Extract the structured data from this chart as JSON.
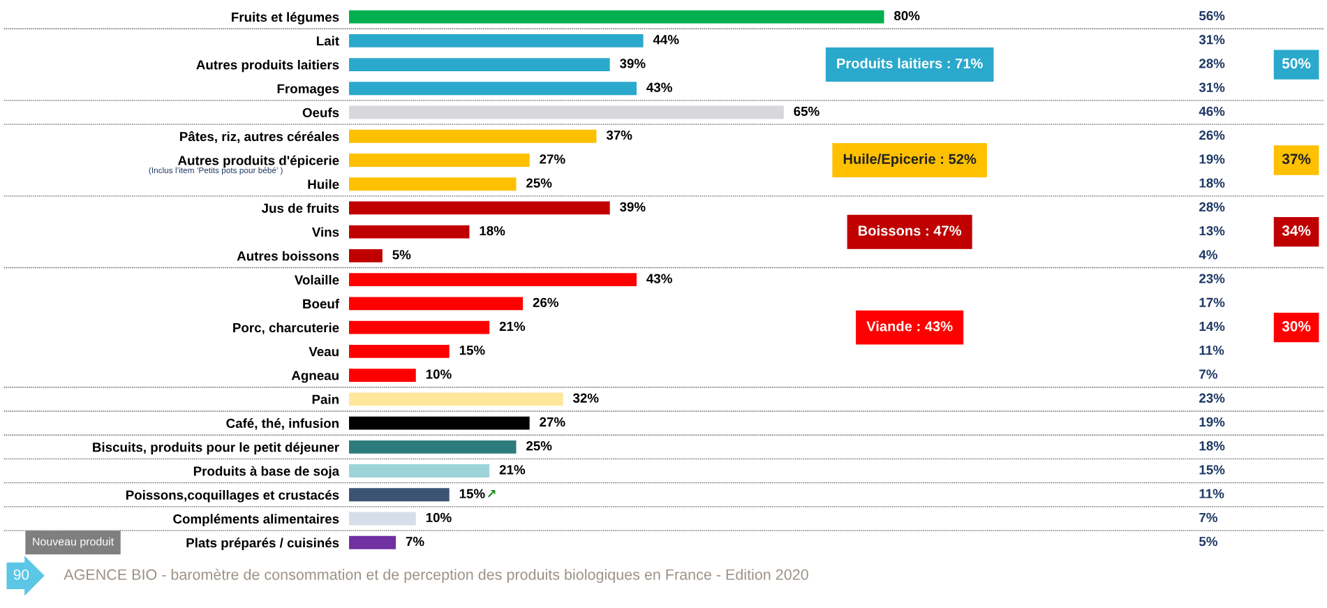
{
  "chart_data": [
    {
      "type": "bar",
      "orientation": "horizontal",
      "data_labels": true,
      "categories": [
        "Fruits et légumes",
        "Lait",
        "Autres produits laitiers",
        "Fromages",
        "Oeufs",
        "Pâtes, riz, autres céréales",
        "Autres produits d'épicerie",
        "Huile",
        "Jus de fruits",
        "Vins",
        "Autres boissons",
        "Volaille",
        "Boeuf",
        "Porc, charcuterie",
        "Veau",
        "Agneau",
        "Pain",
        "Café, thé, infusion",
        "Biscuits, produits pour le petit déjeuner",
        "Produits à base de soja",
        "Poissons,coquillages et crustacés",
        "Compléments alimentaires",
        "Plats préparés / cuisinés"
      ],
      "values": [
        80,
        44,
        39,
        43,
        65,
        37,
        27,
        25,
        39,
        18,
        5,
        43,
        26,
        21,
        15,
        10,
        32,
        27,
        25,
        21,
        15,
        10,
        7
      ],
      "value_labels": [
        "80%",
        "44%",
        "39%",
        "43%",
        "65%",
        "37%",
        "27%",
        "25%",
        "39%",
        "18%",
        "5%",
        "43%",
        "26%",
        "21%",
        "15%",
        "10%",
        "32%",
        "27%",
        "25%",
        "21%",
        "15%",
        "10%",
        "7%"
      ],
      "colors": [
        "#00b050",
        "#2aa9cc",
        "#2aa9cc",
        "#2aa9cc",
        "#d9d7dc",
        "#ffc000",
        "#ffc000",
        "#ffc000",
        "#c00000",
        "#c00000",
        "#c00000",
        "#ff0000",
        "#ff0000",
        "#ff0000",
        "#ff0000",
        "#ff0000",
        "#ffe699",
        "#000000",
        "#2e7b7b",
        "#9dd4d9",
        "#3c5373",
        "#d6dfe9",
        "#7030a0"
      ],
      "annotations": [
        "Produits laitiers : 71%",
        "Huile/Epicerie : 52%",
        "Boissons : 47%",
        "Viande : 43%",
        "↗",
        "(Inclus l’item ‘Petits pots pour bébé’ )",
        "Nouveau produit",
        "90",
        "AGENCE BIO - baromètre de consommation et de perception des produits biologiques en France - Edition 2020"
      ]
    },
    {
      "type": "other",
      "data_labels": true,
      "categories": [
        null,
        null,
        null,
        null,
        null,
        null,
        null,
        null,
        null,
        null,
        null,
        null,
        null,
        null,
        null,
        null,
        null,
        null,
        null,
        null,
        null,
        null,
        null
      ],
      "values": [
        56,
        31,
        28,
        31,
        46,
        26,
        19,
        18,
        28,
        13,
        4,
        23,
        17,
        14,
        11,
        7,
        23,
        19,
        18,
        15,
        11,
        7,
        5
      ],
      "value_labels": [
        "56%",
        "31%",
        "28%",
        "31%",
        "46%",
        "26%",
        "19%",
        "18%",
        "28%",
        "13%",
        "4%",
        "23%",
        "17%",
        "14%",
        "11%",
        "7%",
        "23%",
        "19%",
        "18%",
        "15%",
        "11%",
        "7%",
        "5%"
      ],
      "annotations": [
        "50%",
        "37%",
        "34%",
        "30%"
      ]
    }
  ]
}
